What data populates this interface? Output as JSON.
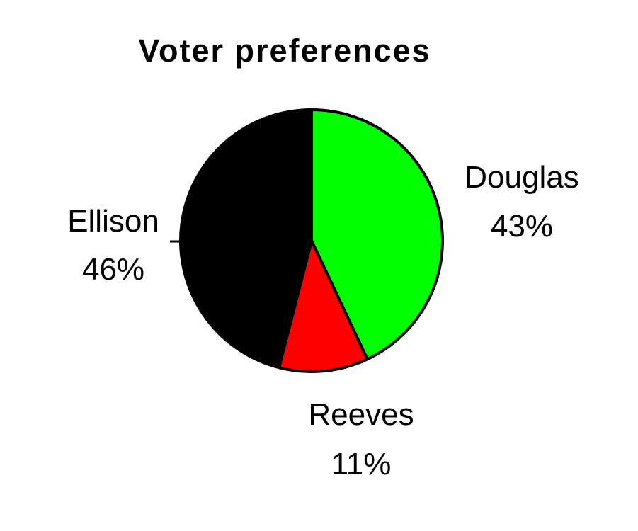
{
  "chart_data": {
    "type": "pie",
    "title": "Voter preferences",
    "slices": [
      {
        "label": "Douglas",
        "value": 43,
        "value_label": "43%",
        "color": "#00ff00"
      },
      {
        "label": "Reeves",
        "value": 11,
        "value_label": "11%",
        "color": "#ff0000"
      },
      {
        "label": "Ellison",
        "value": 46,
        "value_label": "46%",
        "color": "#000000"
      }
    ],
    "start_angle": "12 o'clock",
    "direction": "clockwise",
    "legend": "none",
    "outline_color": "#000000"
  }
}
